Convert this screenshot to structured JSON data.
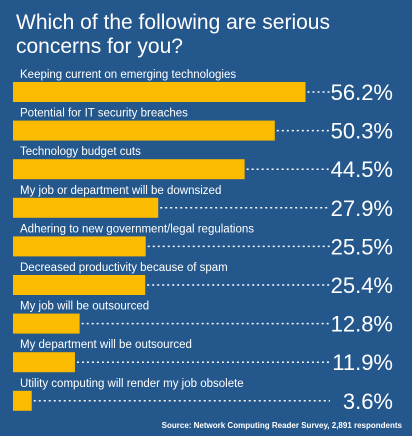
{
  "chart_data": {
    "type": "bar",
    "orientation": "horizontal",
    "title": "Which of the following are serious concerns for you?",
    "categories": [
      "Keeping current on emerging technologies",
      "Potential for IT security breaches",
      "Technology budget cuts",
      "My job or department will be downsized",
      "Adhering to new government/legal regulations",
      "Decreased productivity because of spam",
      "My job will be outsourced",
      "My department will be outsourced",
      "Utility computing will render my job obsolete"
    ],
    "values": [
      56.2,
      50.3,
      44.5,
      27.9,
      25.5,
      25.4,
      12.8,
      11.9,
      3.6
    ],
    "value_labels": [
      "56.2%",
      "50.3%",
      "44.5%",
      "27.9%",
      "25.5%",
      "25.4%",
      "12.8%",
      "11.9%",
      "3.6%"
    ],
    "unit": "%",
    "grid": false,
    "source": "Source: Network Computing Reader Survey, 2,891 respondents",
    "colors": {
      "background": "#24578c",
      "bar": "#fbbb00",
      "text": "#ffffff",
      "leader": "#ffffff"
    }
  }
}
